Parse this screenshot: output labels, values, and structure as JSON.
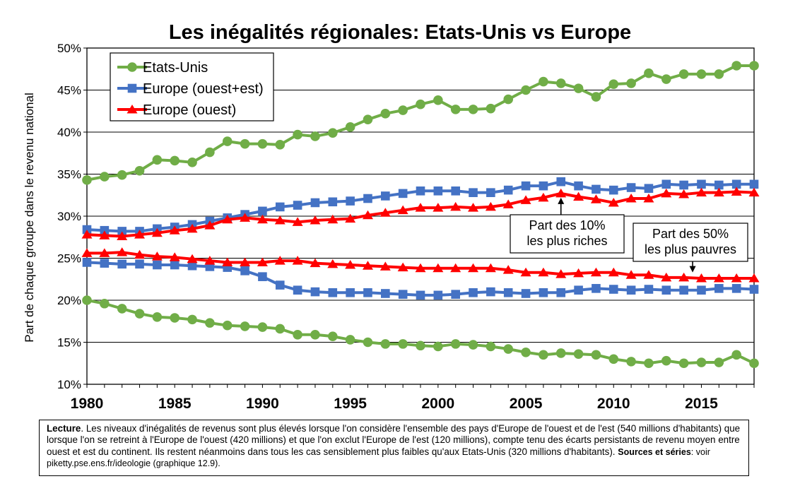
{
  "chart_data": {
    "type": "line",
    "title": "Les inégalités régionales: Etats-Unis vs Europe",
    "xlabel": "",
    "ylabel": "Part de chaque groupe dans le revenu national",
    "xlim": [
      1980,
      2018
    ],
    "ylim": [
      10,
      50
    ],
    "x_ticks": [
      "1980",
      "1985",
      "1990",
      "1995",
      "2000",
      "2005",
      "2010",
      "2015"
    ],
    "y_ticks": [
      "10%",
      "15%",
      "20%",
      "25%",
      "30%",
      "35%",
      "40%",
      "45%",
      "50%"
    ],
    "grid": true,
    "legend_position": "top-left",
    "x": [
      1980,
      1981,
      1982,
      1983,
      1984,
      1985,
      1986,
      1987,
      1988,
      1989,
      1990,
      1991,
      1992,
      1993,
      1994,
      1995,
      1996,
      1997,
      1998,
      1999,
      2000,
      2001,
      2002,
      2003,
      2004,
      2005,
      2006,
      2007,
      2008,
      2009,
      2010,
      2011,
      2012,
      2013,
      2014,
      2015,
      2016,
      2017,
      2018
    ],
    "series": [
      {
        "name": "Etats-Unis",
        "group": "top10",
        "color": "#70AD47",
        "marker": "circle",
        "values": [
          34.3,
          34.7,
          34.9,
          35.4,
          36.7,
          36.6,
          36.4,
          37.6,
          38.9,
          38.6,
          38.6,
          38.5,
          39.7,
          39.5,
          39.9,
          40.6,
          41.5,
          42.2,
          42.6,
          43.3,
          43.8,
          42.7,
          42.7,
          42.8,
          43.9,
          45.0,
          46.0,
          45.8,
          45.2,
          44.2,
          45.7,
          45.8,
          47.0,
          46.3,
          46.9,
          46.9,
          46.9,
          47.9,
          47.9
        ]
      },
      {
        "name": "Europe (ouest+est)",
        "group": "top10",
        "color": "#4472C4",
        "marker": "square",
        "values": [
          28.4,
          28.3,
          28.2,
          28.2,
          28.5,
          28.7,
          29.0,
          29.4,
          29.8,
          30.2,
          30.6,
          31.1,
          31.3,
          31.6,
          31.7,
          31.8,
          32.1,
          32.4,
          32.7,
          33.0,
          33.0,
          33.0,
          32.8,
          32.8,
          33.1,
          33.6,
          33.6,
          34.1,
          33.6,
          33.2,
          33.1,
          33.4,
          33.3,
          33.8,
          33.7,
          33.8,
          33.7,
          33.8,
          33.8
        ]
      },
      {
        "name": "Europe (ouest)",
        "group": "top10",
        "color": "#FF0000",
        "marker": "triangle",
        "values": [
          27.8,
          27.7,
          27.6,
          27.8,
          28.0,
          28.3,
          28.5,
          28.9,
          29.6,
          29.8,
          29.6,
          29.5,
          29.3,
          29.5,
          29.6,
          29.7,
          30.1,
          30.4,
          30.7,
          31.0,
          31.0,
          31.1,
          31.0,
          31.1,
          31.4,
          31.9,
          32.2,
          32.7,
          32.3,
          32.0,
          31.6,
          32.1,
          32.1,
          32.7,
          32.6,
          32.8,
          32.8,
          32.9,
          32.8
        ]
      },
      {
        "name": "Etats-Unis",
        "group": "bottom50",
        "color": "#70AD47",
        "marker": "circle",
        "values": [
          20.0,
          19.6,
          19.0,
          18.4,
          18.0,
          17.9,
          17.7,
          17.3,
          17.0,
          16.9,
          16.8,
          16.6,
          15.9,
          15.9,
          15.7,
          15.3,
          15.0,
          14.8,
          14.8,
          14.6,
          14.5,
          14.8,
          14.7,
          14.5,
          14.2,
          13.8,
          13.5,
          13.7,
          13.6,
          13.5,
          13.0,
          12.7,
          12.5,
          12.8,
          12.5,
          12.6,
          12.6,
          13.5,
          12.5
        ]
      },
      {
        "name": "Europe (ouest+est)",
        "group": "bottom50",
        "color": "#4472C4",
        "marker": "square",
        "values": [
          24.5,
          24.4,
          24.3,
          24.3,
          24.2,
          24.2,
          24.1,
          24.0,
          23.9,
          23.5,
          22.8,
          21.8,
          21.2,
          21.0,
          20.9,
          20.9,
          20.9,
          20.8,
          20.7,
          20.6,
          20.6,
          20.7,
          20.9,
          21.0,
          20.9,
          20.8,
          20.9,
          20.9,
          21.2,
          21.4,
          21.3,
          21.2,
          21.3,
          21.2,
          21.2,
          21.2,
          21.4,
          21.4,
          21.3
        ]
      },
      {
        "name": "Europe (ouest)",
        "group": "bottom50",
        "color": "#FF0000",
        "marker": "triangle",
        "values": [
          25.6,
          25.6,
          25.7,
          25.4,
          25.2,
          25.1,
          24.9,
          24.7,
          24.5,
          24.5,
          24.5,
          24.7,
          24.7,
          24.4,
          24.3,
          24.2,
          24.1,
          24.0,
          23.9,
          23.8,
          23.8,
          23.8,
          23.8,
          23.8,
          23.6,
          23.3,
          23.3,
          23.1,
          23.2,
          23.3,
          23.3,
          23.0,
          23.0,
          22.7,
          22.7,
          22.6,
          22.6,
          22.6,
          22.6
        ]
      }
    ],
    "annotations": [
      {
        "text_lines": [
          "Part des 10%",
          "les plus riches"
        ],
        "arrow_to": {
          "x": 2007,
          "y": 32.7
        }
      },
      {
        "text_lines": [
          "Part des 50%",
          "les plus pauvres"
        ],
        "arrow_to": {
          "x": 2014.5,
          "y": 22.8
        }
      }
    ]
  },
  "legend": {
    "items": [
      {
        "label": "Etats-Unis",
        "color": "#70AD47",
        "marker": "circle"
      },
      {
        "label": "Europe (ouest+est)",
        "color": "#4472C4",
        "marker": "square"
      },
      {
        "label": "Europe (ouest)",
        "color": "#FF0000",
        "marker": "triangle"
      }
    ]
  },
  "lecture": {
    "heading": "Lecture",
    "text": ". Les niveaux d'inégalités de revenus sont plus élevés lorsque l'on considère l'ensemble des pays d'Europe de l'ouest et de l'est (540 millions d'habitants) que lorsque l'on se retreint à l'Europe de l'ouest (420 millions) et que l'on exclut l'Europe de l'est (120 millions), compte tenu des écarts persistants de revenu moyen entre ouest et est du continent. Ils restent néanmoins dans tous les cas sensiblement plus faibles qu'aux Etats-Unis (320 millions d'habitants). ",
    "sources_label": "Sources et séries",
    "sources_text": ": voir piketty.pse.ens.fr/ideologie (graphique 12.9)."
  }
}
